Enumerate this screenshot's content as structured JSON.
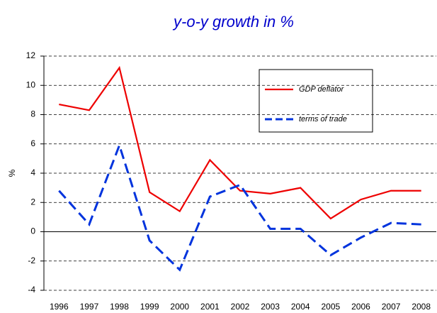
{
  "chart_data": {
    "type": "line",
    "title": "y-o-y growth in %",
    "y_label": "%",
    "categories": [
      "1996",
      "1997",
      "1998",
      "1999",
      "2000",
      "2001",
      "2002",
      "2003",
      "2004",
      "2005",
      "2006",
      "2007",
      "2008"
    ],
    "series": [
      {
        "name": "GDP deflator",
        "color": "#ee0000",
        "dash": false,
        "values": [
          8.7,
          8.3,
          11.2,
          2.7,
          1.4,
          4.9,
          2.8,
          2.6,
          3.0,
          0.9,
          2.2,
          2.8,
          2.8
        ]
      },
      {
        "name": "terms of trade",
        "color": "#0033dd",
        "dash": true,
        "values": [
          2.8,
          0.5,
          5.9,
          -0.6,
          -2.6,
          2.4,
          3.2,
          0.2,
          0.2,
          -1.6,
          -0.4,
          0.6,
          0.5
        ]
      }
    ],
    "ylim": [
      -4,
      12
    ],
    "yticks": [
      -4,
      -2,
      0,
      2,
      4,
      6,
      8,
      10,
      12
    ],
    "grid": true
  }
}
